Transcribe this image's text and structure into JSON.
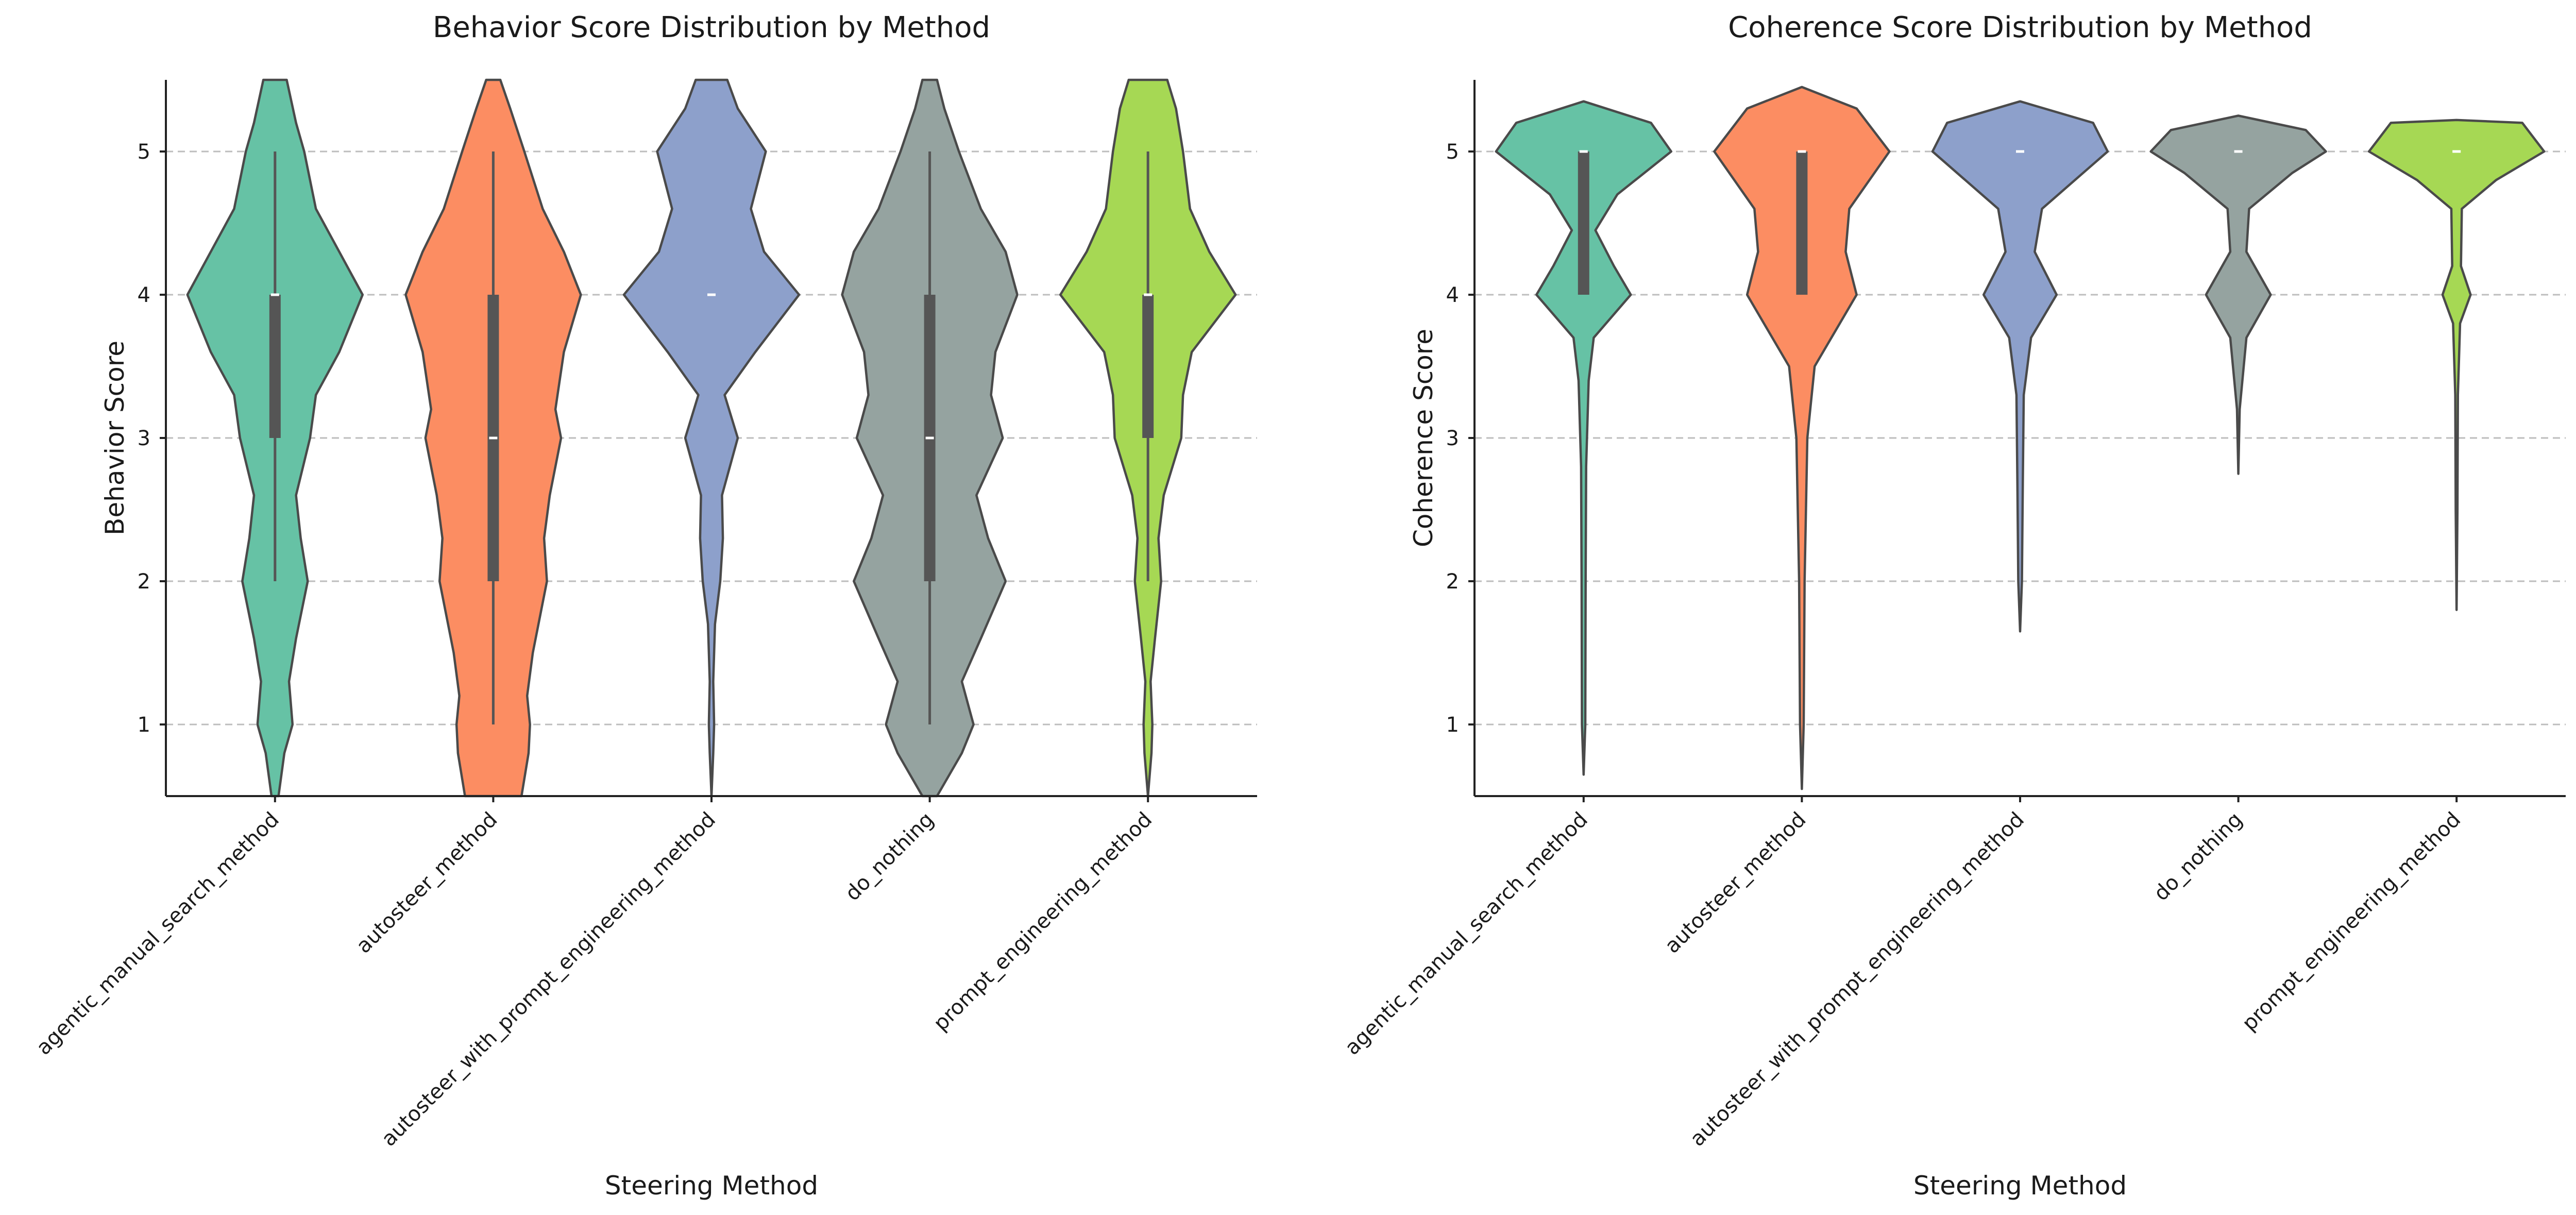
{
  "chart_data": [
    {
      "type": "violin",
      "title": "Behavior Score Distribution by Method",
      "xlabel": "Steering Method",
      "ylabel": "Behavior Score",
      "ylim": [
        0.5,
        5.5
      ],
      "yticks": [
        1,
        2,
        3,
        4,
        5
      ],
      "grid": "horizontal dashed",
      "categories": [
        "agentic_manual_search_method",
        "autosteer_method",
        "autosteer_with_prompt_engineering_method",
        "do_nothing",
        "prompt_engineering_method"
      ],
      "colors": [
        "#66c2a5",
        "#fc8d62",
        "#8da0cb",
        "#95a3a0",
        "#a6d854"
      ],
      "series": [
        {
          "median": 4,
          "q1": 3,
          "q3": 4,
          "whisker_low": 2,
          "whisker_high": 5,
          "density": [
            [
              0.5,
              0.03
            ],
            [
              0.8,
              0.08
            ],
            [
              1.0,
              0.15
            ],
            [
              1.3,
              0.12
            ],
            [
              1.6,
              0.18
            ],
            [
              2.0,
              0.28
            ],
            [
              2.3,
              0.22
            ],
            [
              2.6,
              0.18
            ],
            [
              3.0,
              0.3
            ],
            [
              3.3,
              0.35
            ],
            [
              3.6,
              0.55
            ],
            [
              4.0,
              0.75
            ],
            [
              4.3,
              0.55
            ],
            [
              4.6,
              0.35
            ],
            [
              5.0,
              0.25
            ],
            [
              5.2,
              0.18
            ],
            [
              5.5,
              0.1
            ]
          ]
        },
        {
          "median": 3,
          "q1": 2,
          "q3": 4,
          "whisker_low": 1,
          "whisker_high": 5,
          "density": [
            [
              0.5,
              0.2
            ],
            [
              0.8,
              0.25
            ],
            [
              1.0,
              0.26
            ],
            [
              1.2,
              0.24
            ],
            [
              1.5,
              0.28
            ],
            [
              1.8,
              0.34
            ],
            [
              2.0,
              0.38
            ],
            [
              2.3,
              0.36
            ],
            [
              2.6,
              0.4
            ],
            [
              3.0,
              0.48
            ],
            [
              3.2,
              0.44
            ],
            [
              3.6,
              0.5
            ],
            [
              4.0,
              0.62
            ],
            [
              4.3,
              0.5
            ],
            [
              4.6,
              0.35
            ],
            [
              5.0,
              0.22
            ],
            [
              5.3,
              0.12
            ],
            [
              5.5,
              0.05
            ]
          ]
        },
        {
          "median": 4,
          "q1": 4,
          "q3": 4,
          "whisker_low": 4,
          "whisker_high": 4,
          "density": [
            [
              0.5,
              0.0
            ],
            [
              0.8,
              0.02
            ],
            [
              1.0,
              0.03
            ],
            [
              1.3,
              0.02
            ],
            [
              1.7,
              0.04
            ],
            [
              2.0,
              0.1
            ],
            [
              2.3,
              0.13
            ],
            [
              2.6,
              0.12
            ],
            [
              3.0,
              0.3
            ],
            [
              3.3,
              0.15
            ],
            [
              3.6,
              0.5
            ],
            [
              4.0,
              1.0
            ],
            [
              4.3,
              0.6
            ],
            [
              4.6,
              0.45
            ],
            [
              5.0,
              0.62
            ],
            [
              5.3,
              0.3
            ],
            [
              5.5,
              0.18
            ]
          ]
        },
        {
          "median": 3,
          "q1": 2,
          "q3": 4,
          "whisker_low": 1,
          "whisker_high": 5,
          "density": [
            [
              0.5,
              0.05
            ],
            [
              0.8,
              0.22
            ],
            [
              1.0,
              0.3
            ],
            [
              1.3,
              0.22
            ],
            [
              1.6,
              0.35
            ],
            [
              2.0,
              0.52
            ],
            [
              2.3,
              0.4
            ],
            [
              2.6,
              0.32
            ],
            [
              3.0,
              0.5
            ],
            [
              3.3,
              0.42
            ],
            [
              3.6,
              0.45
            ],
            [
              4.0,
              0.6
            ],
            [
              4.3,
              0.52
            ],
            [
              4.6,
              0.35
            ],
            [
              5.0,
              0.2
            ],
            [
              5.3,
              0.1
            ],
            [
              5.5,
              0.05
            ]
          ]
        },
        {
          "median": 4,
          "q1": 3,
          "q3": 4,
          "whisker_low": 2,
          "whisker_high": 5,
          "density": [
            [
              0.5,
              0.0
            ],
            [
              0.8,
              0.04
            ],
            [
              1.0,
              0.05
            ],
            [
              1.3,
              0.03
            ],
            [
              1.6,
              0.08
            ],
            [
              2.0,
              0.15
            ],
            [
              2.3,
              0.12
            ],
            [
              2.6,
              0.18
            ],
            [
              3.0,
              0.38
            ],
            [
              3.3,
              0.4
            ],
            [
              3.6,
              0.5
            ],
            [
              4.0,
              1.0
            ],
            [
              4.3,
              0.7
            ],
            [
              4.6,
              0.48
            ],
            [
              5.0,
              0.4
            ],
            [
              5.3,
              0.32
            ],
            [
              5.5,
              0.22
            ]
          ]
        }
      ]
    },
    {
      "type": "violin",
      "title": "Coherence Score Distribution by Method",
      "xlabel": "Steering Method",
      "ylabel": "Coherence Score",
      "ylim": [
        0.5,
        5.5
      ],
      "yticks": [
        1,
        2,
        3,
        4,
        5
      ],
      "grid": "horizontal dashed",
      "categories": [
        "agentic_manual_search_method",
        "autosteer_method",
        "autosteer_with_prompt_engineering_method",
        "do_nothing",
        "prompt_engineering_method"
      ],
      "colors": [
        "#66c2a5",
        "#fc8d62",
        "#8da0cb",
        "#95a3a0",
        "#a6d854"
      ],
      "series": [
        {
          "median": 5,
          "q1": 4,
          "q3": 5,
          "whisker_low": 4,
          "whisker_high": 5,
          "density": [
            [
              0.65,
              0.0
            ],
            [
              1.0,
              0.01
            ],
            [
              2.0,
              0.012
            ],
            [
              2.8,
              0.015
            ],
            [
              3.4,
              0.03
            ],
            [
              3.7,
              0.06
            ],
            [
              4.0,
              0.28
            ],
            [
              4.2,
              0.18
            ],
            [
              4.45,
              0.07
            ],
            [
              4.7,
              0.2
            ],
            [
              5.0,
              0.52
            ],
            [
              5.2,
              0.4
            ],
            [
              5.35,
              0.0
            ]
          ]
        },
        {
          "median": 5,
          "q1": 4,
          "q3": 5,
          "whisker_low": 4,
          "whisker_high": 5,
          "density": [
            [
              0.55,
              0.0
            ],
            [
              1.0,
              0.01
            ],
            [
              2.0,
              0.015
            ],
            [
              3.0,
              0.03
            ],
            [
              3.5,
              0.07
            ],
            [
              4.0,
              0.3
            ],
            [
              4.3,
              0.24
            ],
            [
              4.6,
              0.26
            ],
            [
              5.0,
              0.48
            ],
            [
              5.3,
              0.3
            ],
            [
              5.45,
              0.0
            ]
          ]
        },
        {
          "median": 5,
          "q1": 5,
          "q3": 5,
          "whisker_low": 5,
          "whisker_high": 5,
          "density": [
            [
              1.65,
              0.0
            ],
            [
              2.0,
              0.01
            ],
            [
              2.7,
              0.015
            ],
            [
              3.3,
              0.02
            ],
            [
              3.7,
              0.06
            ],
            [
              4.0,
              0.2
            ],
            [
              4.3,
              0.08
            ],
            [
              4.6,
              0.12
            ],
            [
              4.8,
              0.3
            ],
            [
              5.0,
              0.48
            ],
            [
              5.2,
              0.4
            ],
            [
              5.35,
              0.0
            ]
          ]
        },
        {
          "median": 5,
          "q1": 5,
          "q3": 5,
          "whisker_low": 5,
          "whisker_high": 5,
          "density": [
            [
              2.75,
              0.0
            ],
            [
              3.2,
              0.01
            ],
            [
              3.7,
              0.06
            ],
            [
              4.0,
              0.24
            ],
            [
              4.3,
              0.06
            ],
            [
              4.6,
              0.08
            ],
            [
              4.85,
              0.4
            ],
            [
              5.0,
              0.65
            ],
            [
              5.15,
              0.5
            ],
            [
              5.25,
              0.0
            ]
          ]
        },
        {
          "median": 5,
          "q1": 5,
          "q3": 5,
          "whisker_low": 5,
          "whisker_high": 5,
          "density": [
            [
              1.8,
              0.0
            ],
            [
              2.5,
              0.01
            ],
            [
              3.3,
              0.015
            ],
            [
              3.8,
              0.04
            ],
            [
              4.0,
              0.16
            ],
            [
              4.2,
              0.05
            ],
            [
              4.6,
              0.06
            ],
            [
              4.8,
              0.45
            ],
            [
              5.0,
              1.0
            ],
            [
              5.2,
              0.75
            ],
            [
              5.22,
              0.0
            ]
          ]
        }
      ]
    }
  ]
}
